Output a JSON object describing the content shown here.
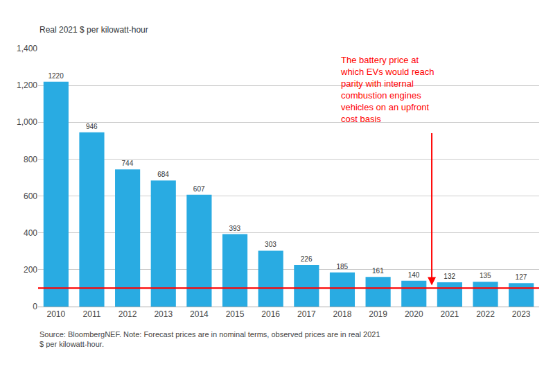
{
  "chart_data": {
    "type": "bar",
    "categories": [
      "2010",
      "2011",
      "2012",
      "2013",
      "2014",
      "2015",
      "2016",
      "2017",
      "2018",
      "2019",
      "2020",
      "2021",
      "2022",
      "2023"
    ],
    "values": [
      1220,
      946,
      744,
      684,
      607,
      393,
      303,
      226,
      185,
      161,
      140,
      132,
      135,
      127
    ],
    "color": "#29ABE2",
    "ylabel": "Real 2021 $ per kilowatt-hour",
    "ylim": [
      0,
      1400
    ],
    "yticks": [
      0,
      200,
      400,
      600,
      800,
      {
        "value": 1000,
        "label": "1,000"
      },
      {
        "value": 1200,
        "label": "1,200"
      },
      {
        "value": 1400,
        "label": "1,400"
      }
    ],
    "grid": true,
    "data_labels": true,
    "reference_line": {
      "value": 100,
      "color": "#FF0000"
    },
    "annotations": [
      {
        "text": "The battery price at\nwhich EVs would reach\nparity with internal\ncombustion engines\nvehicles on an upfront\ncost basis",
        "color": "#FF0000"
      }
    ],
    "source": "Source: BloombergNEF. Note: Forecast prices are in nominal terms, observed prices are in real 2021\n$ per kilowatt-hour."
  }
}
